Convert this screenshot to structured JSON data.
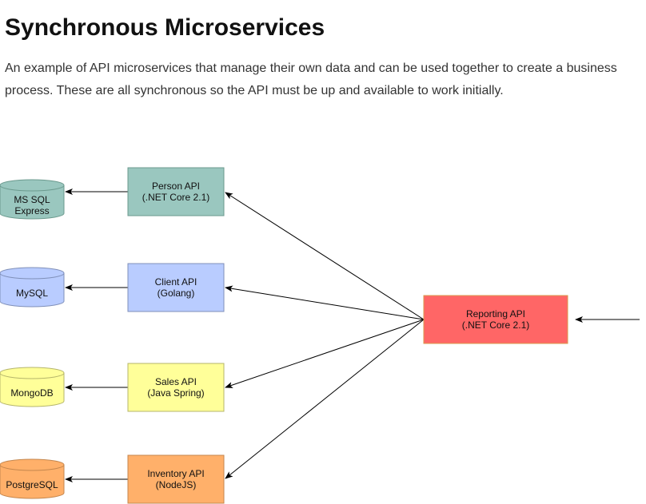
{
  "page": {
    "title": "Synchronous Microservices",
    "description": "An example of API microservices that manage their own data and can be used together to create a business process. These are all synchronous so the API must be up and available to work initially."
  },
  "diagram": {
    "services": [
      {
        "id": "person",
        "line1": "Person API",
        "line2": "(.NET Core 2.1)",
        "fill": "#9ac7bf",
        "stroke": "#6b9a8e"
      },
      {
        "id": "client",
        "line1": "Client API",
        "line2": "(Golang)",
        "fill": "#b9ccff",
        "stroke": "#7f8fb8"
      },
      {
        "id": "sales",
        "line1": "Sales API",
        "line2": "(Java Spring)",
        "fill": "#ffff99",
        "stroke": "#b5b56b"
      },
      {
        "id": "inventory",
        "line1": "Inventory API",
        "line2": "(NodeJS)",
        "fill": "#ffb06a",
        "stroke": "#c4864d"
      }
    ],
    "databases": [
      {
        "id": "mssql",
        "line1": "MS SQL",
        "line2": "Express",
        "fill": "#9ac7bf",
        "stroke": "#6b9a8e"
      },
      {
        "id": "mysql",
        "line1": "MySQL",
        "line2": "",
        "fill": "#b9ccff",
        "stroke": "#7f8fb8"
      },
      {
        "id": "mongodb",
        "line1": "MongoDB",
        "line2": "",
        "fill": "#ffff99",
        "stroke": "#b5b56b"
      },
      {
        "id": "postgres",
        "line1": "PostgreSQL",
        "line2": "",
        "fill": "#ffb06a",
        "stroke": "#c4864d"
      }
    ],
    "reporting": {
      "line1": "Reporting API",
      "line2": "(.NET Core 2.1)",
      "fill": "#ff6666",
      "stroke": "#d99a4e"
    },
    "edge_color": "#000000"
  }
}
